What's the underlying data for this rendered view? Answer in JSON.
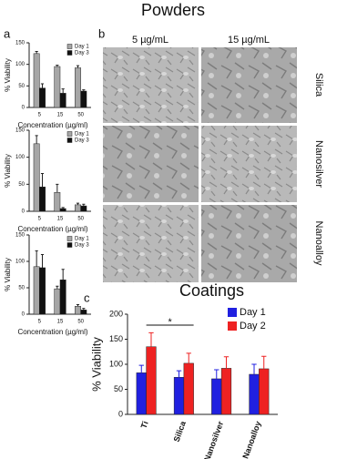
{
  "figure_title": "Powders",
  "panel_labels": [
    "a",
    "b",
    "c"
  ],
  "images": {
    "columns": [
      "5 µg/mL",
      "15 µg/mL"
    ],
    "rows": [
      "Silica",
      "Nanosilver",
      "Nanoalloy"
    ]
  },
  "chart_data": [
    {
      "type": "bar",
      "y_label": "% Viability",
      "x_label": "Concentration (µg/ml)",
      "categories": [
        "5",
        "15",
        "50"
      ],
      "series": [
        {
          "name": "Day 1",
          "color": "#a6a6a6",
          "values": [
            125,
            95,
            92
          ],
          "errors": [
            5,
            3,
            5
          ]
        },
        {
          "name": "Day 3",
          "color": "#111111",
          "values": [
            45,
            33,
            38
          ],
          "errors": [
            10,
            10,
            3
          ]
        }
      ],
      "ylim": [
        0,
        150
      ],
      "yticks": [
        0,
        50,
        100,
        150
      ],
      "legend": "top-right"
    },
    {
      "type": "bar",
      "y_label": "% Viability",
      "x_label": "Concentration (µg/ml)",
      "categories": [
        "5",
        "15",
        "50"
      ],
      "series": [
        {
          "name": "Day 1",
          "color": "#a6a6a6",
          "values": [
            125,
            35,
            12
          ],
          "errors": [
            15,
            15,
            3
          ]
        },
        {
          "name": "Day 3",
          "color": "#111111",
          "values": [
            45,
            5,
            10
          ],
          "errors": [
            25,
            2,
            3
          ]
        }
      ],
      "ylim": [
        0,
        150
      ],
      "yticks": [
        0,
        50,
        100,
        150
      ],
      "legend": "top-right"
    },
    {
      "type": "bar",
      "y_label": "% Viability",
      "x_label": "Concentration (µg/ml)",
      "categories": [
        "5",
        "15",
        "50"
      ],
      "series": [
        {
          "name": "Day 1",
          "color": "#a6a6a6",
          "values": [
            90,
            48,
            15
          ],
          "errors": [
            30,
            5,
            3
          ]
        },
        {
          "name": "Day 3",
          "color": "#111111",
          "values": [
            88,
            65,
            8
          ],
          "errors": [
            25,
            20,
            3
          ]
        }
      ],
      "ylim": [
        0,
        150
      ],
      "yticks": [
        0,
        50,
        100,
        150
      ],
      "legend": "top-right"
    },
    {
      "type": "bar",
      "title": "Coatings",
      "y_label": "% Viability",
      "categories": [
        "Ti",
        "Silica",
        "Nanosilver",
        "Nanoalloy"
      ],
      "series": [
        {
          "name": "Day 1",
          "color": "#2020e0",
          "values": [
            83,
            74,
            71,
            80
          ],
          "errors": [
            15,
            13,
            18,
            20
          ]
        },
        {
          "name": "Day 2",
          "color": "#ee2222",
          "values": [
            135,
            102,
            92,
            91
          ],
          "errors": [
            28,
            20,
            23,
            25
          ]
        }
      ],
      "ylim": [
        0,
        200
      ],
      "yticks": [
        0,
        50,
        100,
        150,
        200
      ],
      "legend": "top-right",
      "annotations": [
        {
          "text": "*",
          "between": [
            0,
            1
          ]
        }
      ]
    }
  ]
}
